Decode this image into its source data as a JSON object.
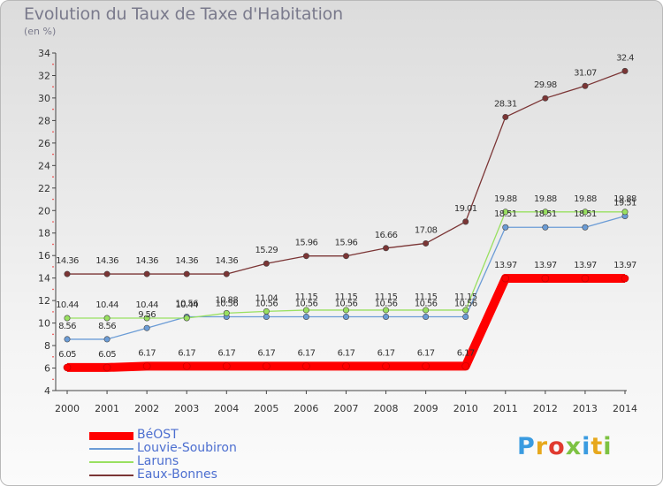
{
  "chart_data": {
    "type": "line",
    "title": "Evolution du Taux de Taxe d'Habitation",
    "unit_label": "(en %)",
    "categories": [
      "2000",
      "2001",
      "2002",
      "2003",
      "2004",
      "2005",
      "2006",
      "2007",
      "2008",
      "2009",
      "2010",
      "2011",
      "2012",
      "2013",
      "2014"
    ],
    "ylim": [
      4,
      34
    ],
    "yticks": [
      4,
      6,
      8,
      10,
      12,
      14,
      16,
      18,
      20,
      22,
      24,
      26,
      28,
      30,
      32,
      34
    ],
    "grid": false,
    "legend_position": "bottom-left",
    "series": [
      {
        "name": "BéOST",
        "color": "#ff0000",
        "values": [
          6.05,
          6.05,
          6.17,
          6.17,
          6.17,
          6.17,
          6.17,
          6.17,
          6.17,
          6.17,
          6.17,
          13.97,
          13.97,
          13.97,
          13.97
        ],
        "labels": [
          "6.05",
          "6.05",
          "6.17",
          "6.17",
          "6.17",
          "6.17",
          "6.17",
          "6.17",
          "6.17",
          "6.17",
          "6.17",
          "13.97",
          "13.97",
          "13.97",
          "13.97"
        ]
      },
      {
        "name": "Louvie-Soubiron",
        "color": "#6b9cd6",
        "values": [
          8.56,
          8.56,
          9.56,
          10.56,
          10.56,
          10.56,
          10.56,
          10.56,
          10.56,
          10.56,
          10.56,
          18.51,
          18.51,
          18.51,
          19.51
        ],
        "labels": [
          "8.56",
          "8.56",
          "9.56",
          "10.56",
          "10.56",
          "10.56",
          "10.56",
          "10.56",
          "10.56",
          "10.56",
          "10.56",
          "18.51",
          "18.51",
          "18.51",
          "19.51"
        ]
      },
      {
        "name": "Laruns",
        "color": "#99e060",
        "values": [
          10.44,
          10.44,
          10.44,
          10.44,
          10.88,
          11.04,
          11.15,
          11.15,
          11.15,
          11.15,
          11.15,
          19.88,
          19.88,
          19.88,
          19.88
        ],
        "labels": [
          "10.44",
          "10.44",
          "10.44",
          "10.44",
          "10.88",
          "11.04",
          "11.15",
          "11.15",
          "11.15",
          "11.15",
          "11.15",
          "19.88",
          "19.88",
          "19.88",
          "19.88"
        ]
      },
      {
        "name": "Eaux-Bonnes",
        "color": "#7b3535",
        "values": [
          14.36,
          14.36,
          14.36,
          14.36,
          14.36,
          15.29,
          15.96,
          15.96,
          16.66,
          17.08,
          19.01,
          28.31,
          29.98,
          31.07,
          32.4
        ],
        "labels": [
          "14.36",
          "14.36",
          "14.36",
          "14.36",
          "14.36",
          "15.29",
          "15.96",
          "15.96",
          "16.66",
          "17.08",
          "19.01",
          "28.31",
          "29.98",
          "31.07",
          "32.4"
        ]
      }
    ]
  },
  "logo": {
    "text": "Proxiti",
    "colors": [
      "#3a9be0",
      "#e7a81d",
      "#e03a2f",
      "#7dc242",
      "#3a9be0",
      "#e7a81d",
      "#7dc242"
    ]
  }
}
